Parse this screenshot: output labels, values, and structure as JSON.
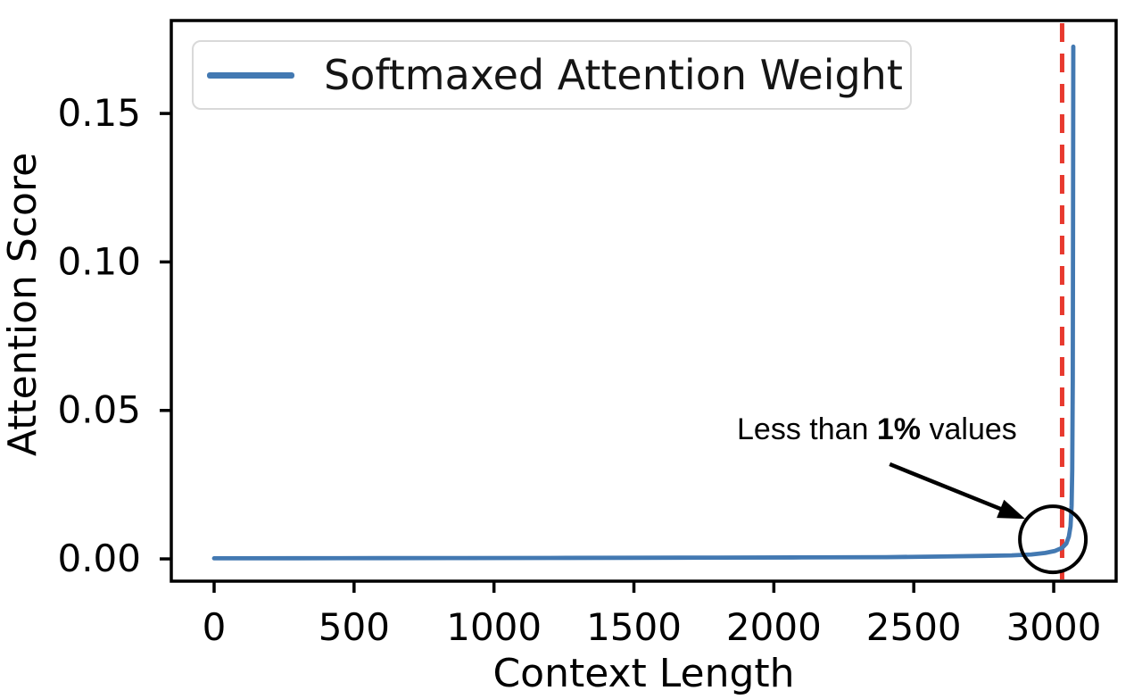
{
  "chart": {
    "ylabel": "Attention Score",
    "xlabel": "Context Length",
    "legend": {
      "label": "Softmaxed Attention Weight"
    },
    "annotation": {
      "text_before": "Less than ",
      "text_bold": "1%",
      "text_after": " values"
    }
  },
  "chart_data": {
    "type": "line",
    "title": "",
    "xlabel": "Context Length",
    "ylabel": "Attention Score",
    "xlim": [
      -153,
      3223
    ],
    "ylim": [
      -0.0075,
      0.1813
    ],
    "x_ticks": [
      0,
      500,
      1000,
      1500,
      2000,
      2500,
      3000
    ],
    "x_tick_labels": [
      "0",
      "500",
      "1000",
      "1500",
      "2000",
      "2500",
      "3000"
    ],
    "y_ticks": [
      0.0,
      0.05,
      0.1,
      0.15
    ],
    "y_tick_labels": [
      "0.00",
      "0.05",
      "0.10",
      "0.15"
    ],
    "grid": false,
    "legend_position": "upper left",
    "series": [
      {
        "name": "Softmaxed Attention Weight",
        "color": "#4379b2",
        "x": [
          0,
          300,
          600,
          900,
          1200,
          1500,
          1800,
          2100,
          2400,
          2600,
          2750,
          2850,
          2920,
          2970,
          3005,
          3030,
          3045,
          3054,
          3060,
          3064,
          3066,
          3068,
          3069,
          3070
        ],
        "y": [
          0.0002,
          0.00022,
          0.00025,
          0.0003,
          0.00033,
          0.00038,
          0.00044,
          0.0005,
          0.0006,
          0.0008,
          0.001,
          0.0012,
          0.0015,
          0.002,
          0.0027,
          0.0037,
          0.0052,
          0.0075,
          0.011,
          0.018,
          0.03,
          0.06,
          0.11,
          0.1725
        ]
      }
    ],
    "max_value": 0.1725,
    "vline": {
      "x": 3030,
      "color": "#e8392e",
      "style": "dashed"
    },
    "annotations": [
      {
        "text": "Less than 1% values",
        "arrow_from_xy": [
          2414,
          0.0319
        ],
        "arrow_to_xy": [
          2898,
          0.0135
        ],
        "circle_center_xy": [
          2997,
          0.0066
        ],
        "circle_radius_px": 37,
        "color": "#000000"
      }
    ]
  }
}
